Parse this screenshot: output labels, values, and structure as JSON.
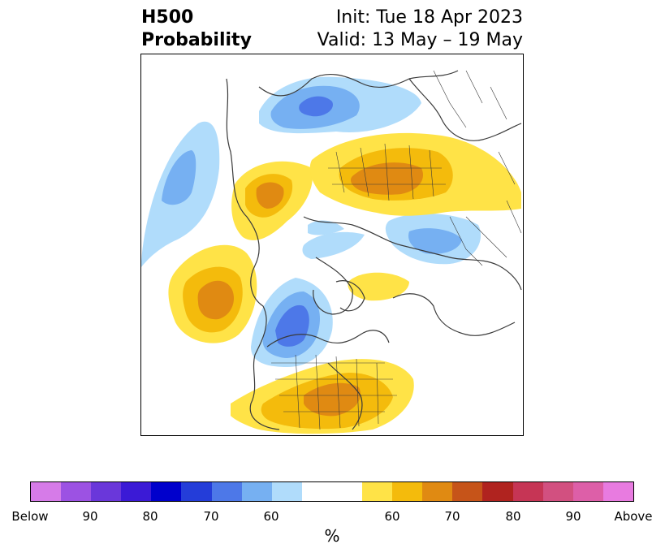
{
  "header": {
    "title_line1": "H500",
    "title_line2": "Probability",
    "init": "Init: Tue 18 Apr 2023",
    "valid": "Valid: 13 May – 19 May"
  },
  "colorbar": {
    "colors": [
      "#d67be8",
      "#9c52e3",
      "#6a37da",
      "#3b1ad6",
      "#0000cc",
      "#243dd9",
      "#4d78e8",
      "#76b0f2",
      "#b0dcfb",
      "#ffffff",
      "#ffe347",
      "#f4bb0c",
      "#e08a12",
      "#c65419",
      "#b0231f",
      "#c63555",
      "#d25080",
      "#dd5fa8",
      "#e87be0"
    ],
    "tick_labels": [
      "Below",
      "90",
      "80",
      "70",
      "60",
      "60",
      "70",
      "80",
      "90",
      "Above"
    ],
    "unit": "%"
  },
  "legend_colors": {
    "below_light": "#b0dcfb",
    "below_mid": "#76b0f2",
    "below_strong": "#4d78e8",
    "above_light": "#ffe347",
    "above_mid": "#f4bb0c",
    "above_strong": "#e08a12",
    "coastline": "#3a3a3a"
  }
}
